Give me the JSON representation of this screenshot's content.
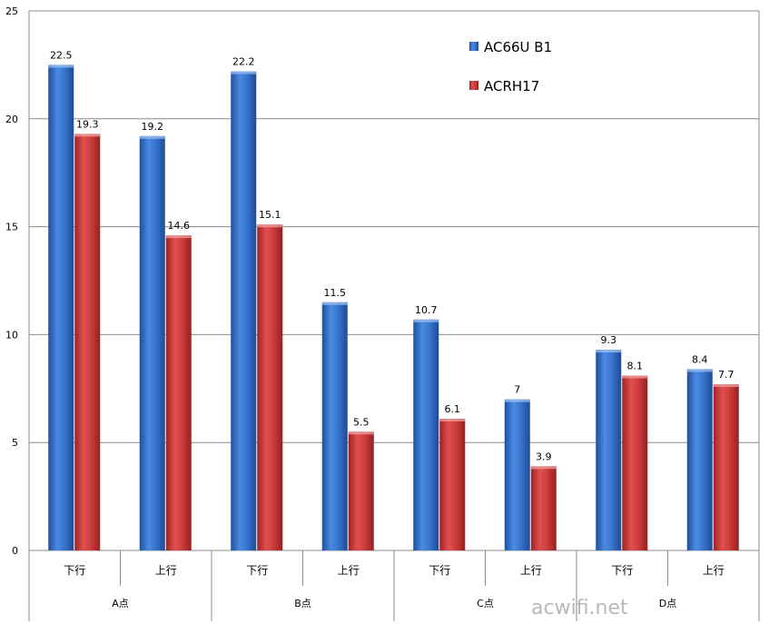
{
  "chart_data": {
    "type": "bar",
    "title": "",
    "xlabel": "",
    "ylabel": "",
    "ylim": [
      0,
      25
    ],
    "yticks": [
      0,
      5,
      10,
      15,
      20,
      25
    ],
    "grid": true,
    "legend_position": "top-right",
    "groups": [
      "A点",
      "B点",
      "C点",
      "D点"
    ],
    "categories": [
      "下行",
      "上行",
      "下行",
      "上行",
      "下行",
      "上行",
      "下行",
      "上行"
    ],
    "series": [
      {
        "name": "AC66U B1",
        "color": "#2f6fcc",
        "values": [
          22.5,
          19.2,
          22.2,
          11.5,
          10.7,
          7,
          9.3,
          8.4
        ]
      },
      {
        "name": "ACRH17",
        "color": "#cc3535",
        "values": [
          19.3,
          14.6,
          15.1,
          5.5,
          6.1,
          3.9,
          8.1,
          7.7
        ]
      }
    ]
  },
  "watermark": "acwifi.net"
}
